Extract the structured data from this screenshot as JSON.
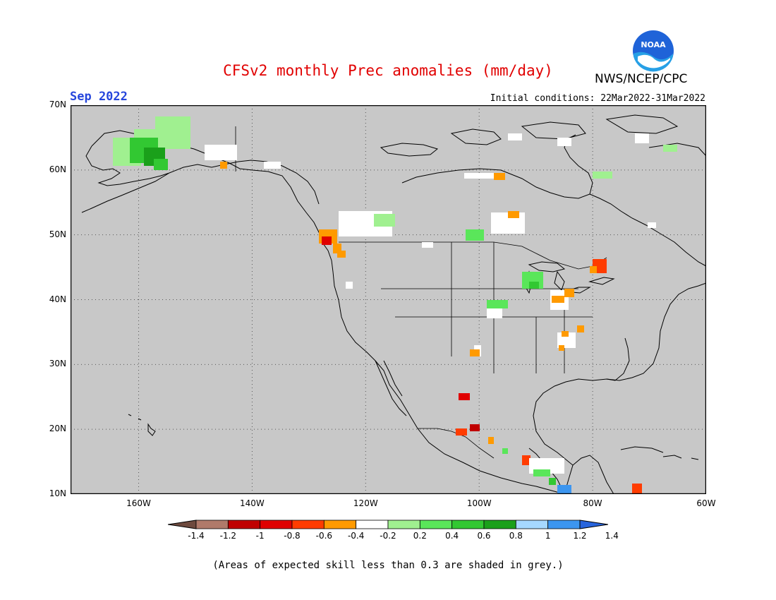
{
  "header": {
    "title": "CFSv2 monthly Prec anomalies (mm/day)",
    "month": "Sep 2022",
    "initial_conditions": "Initial conditions: 22Mar2022-31Mar2022",
    "agency": "NWS/NCEP/CPC",
    "logo_text": "NOAA"
  },
  "colors": {
    "background": "#c8c8c8",
    "title": "#e10000",
    "month": "#2646dc",
    "map_border": "#000000"
  },
  "map": {
    "lon_range": [
      -172,
      -60
    ],
    "lat_range": [
      10,
      70
    ],
    "lat_ticks": [
      {
        "value": 70,
        "label": "70N"
      },
      {
        "value": 60,
        "label": "60N"
      },
      {
        "value": 50,
        "label": "50N"
      },
      {
        "value": 40,
        "label": "40N"
      },
      {
        "value": 30,
        "label": "30N"
      },
      {
        "value": 20,
        "label": "20N"
      },
      {
        "value": 10,
        "label": "10N"
      }
    ],
    "lon_ticks": [
      {
        "value": -160,
        "label": "160W"
      },
      {
        "value": -140,
        "label": "140W"
      },
      {
        "value": -120,
        "label": "120W"
      },
      {
        "value": -100,
        "label": "100W"
      },
      {
        "value": -80,
        "label": "80W"
      },
      {
        "value": -60,
        "label": "60W"
      }
    ],
    "grid": "dotted"
  },
  "colorbar": {
    "colors": [
      "#6e4a3e",
      "#b07a6a",
      "#c00000",
      "#e00000",
      "#ff3c00",
      "#ff9a00",
      "#ffffff",
      "#a0f090",
      "#5ae65a",
      "#32c832",
      "#1aa01a",
      "#a6d8ff",
      "#3c96f0",
      "#2864dc"
    ],
    "labels": [
      "-1.4",
      "-1.2",
      "-1",
      "-0.8",
      "-0.6",
      "-0.4",
      "-0.2",
      "0.2",
      "0.4",
      "0.6",
      "0.8",
      "1",
      "1.2",
      "1.4"
    ]
  },
  "footnote": "(Areas of expected skill less than 0.3 are shaded in grey.)"
}
